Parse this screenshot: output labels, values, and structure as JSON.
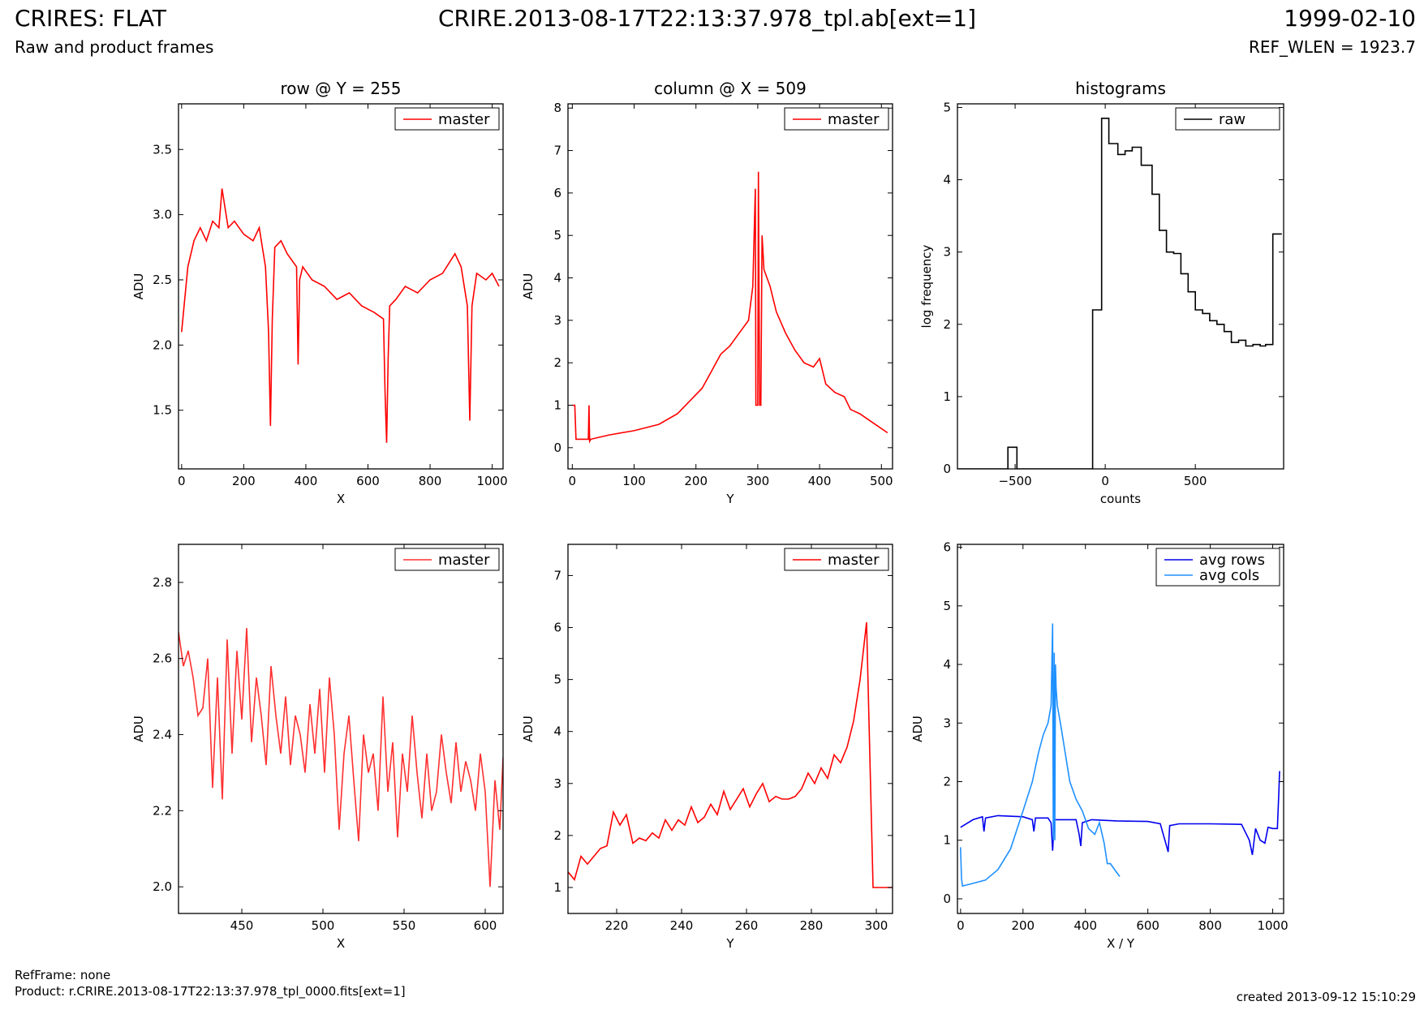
{
  "header": {
    "title_left": "CRIRES: FLAT",
    "title_center": "CRIRE.2013-08-17T22:13:37.978_tpl.ab[ext=1]",
    "title_right": "1999-02-10",
    "subtitle_left": "Raw and product frames",
    "subtitle_right": "REF_WLEN = 1923.7"
  },
  "footer": {
    "refframe": "RefFrame: none",
    "product": "Product: r.CRIRE.2013-08-17T22:13:37.978_tpl_0000.fits[ext=1]",
    "created": "created 2013-09-12 15:10:29"
  },
  "chart_data": [
    {
      "type": "line",
      "title": "row @ Y = 255",
      "xlabel": "X",
      "ylabel": "ADU",
      "xlim": [
        -10,
        1035
      ],
      "ylim": [
        1.05,
        3.85
      ],
      "xticks": [
        0,
        200,
        400,
        600,
        800,
        1000
      ],
      "yticks": [
        1.5,
        2.0,
        2.5,
        3.0,
        3.5
      ],
      "ytick_labels": [
        "1.5",
        "2.0",
        "2.5",
        "3.0",
        "3.5"
      ],
      "legend_position": "top-right",
      "series": [
        {
          "name": "master",
          "color": "#ff0000",
          "x": [
            0,
            20,
            40,
            60,
            80,
            100,
            120,
            130,
            150,
            170,
            200,
            230,
            250,
            270,
            280,
            286,
            292,
            300,
            320,
            340,
            370,
            375,
            380,
            390,
            420,
            460,
            500,
            540,
            580,
            620,
            650,
            655,
            660,
            665,
            670,
            690,
            720,
            760,
            800,
            840,
            880,
            900,
            920,
            928,
            935,
            950,
            980,
            1000,
            1022
          ],
          "y": [
            2.1,
            2.6,
            2.8,
            2.9,
            2.8,
            2.95,
            2.9,
            3.2,
            2.9,
            2.95,
            2.85,
            2.8,
            2.9,
            2.6,
            2.1,
            1.38,
            2.2,
            2.75,
            2.8,
            2.7,
            2.6,
            1.85,
            2.5,
            2.6,
            2.5,
            2.45,
            2.35,
            2.4,
            2.3,
            2.25,
            2.2,
            1.65,
            1.25,
            1.9,
            2.3,
            2.35,
            2.45,
            2.4,
            2.5,
            2.55,
            2.7,
            2.6,
            2.3,
            1.42,
            2.3,
            2.55,
            2.5,
            2.55,
            2.45
          ]
        }
      ]
    },
    {
      "type": "line",
      "title": "column @ X = 509",
      "xlabel": "Y",
      "ylabel": "ADU",
      "xlim": [
        -7,
        518
      ],
      "ylim": [
        -0.5,
        8.1
      ],
      "xticks": [
        0,
        100,
        200,
        300,
        400,
        500
      ],
      "yticks": [
        0,
        1,
        2,
        3,
        4,
        5,
        6,
        7,
        8
      ],
      "ytick_labels": [
        "0",
        "1",
        "2",
        "3",
        "4",
        "5",
        "6",
        "7",
        "8"
      ],
      "legend_position": "top-right",
      "series": [
        {
          "name": "master",
          "color": "#ff0000",
          "x": [
            0,
            4,
            6,
            26,
            27,
            28,
            30,
            60,
            100,
            140,
            170,
            190,
            210,
            225,
            240,
            255,
            265,
            275,
            285,
            292,
            296,
            297,
            300,
            301,
            303,
            305,
            307,
            310,
            320,
            330,
            345,
            360,
            375,
            390,
            400,
            410,
            425,
            440,
            450,
            465,
            480,
            495,
            510
          ],
          "y": [
            1.0,
            1.0,
            0.2,
            0.2,
            1.0,
            0.15,
            0.2,
            0.3,
            0.4,
            0.55,
            0.8,
            1.1,
            1.4,
            1.8,
            2.2,
            2.4,
            2.6,
            2.8,
            3.0,
            3.8,
            6.1,
            1.0,
            1.0,
            6.5,
            1.0,
            1.0,
            5.0,
            4.2,
            3.8,
            3.2,
            2.7,
            2.3,
            2.0,
            1.9,
            2.1,
            1.5,
            1.3,
            1.2,
            0.9,
            0.8,
            0.65,
            0.5,
            0.35
          ]
        }
      ]
    },
    {
      "type": "line",
      "title": "histograms",
      "xlabel": "counts",
      "ylabel": "log frequency",
      "xlim": [
        -820,
        990
      ],
      "ylim": [
        0,
        5.05
      ],
      "xticks": [
        -500,
        0,
        500
      ],
      "xtick_labels": [
        "−500",
        "0",
        "500"
      ],
      "yticks": [
        0,
        1,
        2,
        3,
        4,
        5
      ],
      "ytick_labels": [
        "0",
        "1",
        "2",
        "3",
        "4",
        "5"
      ],
      "legend_position": "top-right",
      "series": [
        {
          "name": "raw",
          "color": "#000000",
          "step": true,
          "x": [
            -820,
            -540,
            -540,
            -490,
            -490,
            -70,
            -70,
            -20,
            -20,
            20,
            20,
            70,
            70,
            110,
            110,
            150,
            150,
            200,
            200,
            260,
            260,
            300,
            300,
            340,
            340,
            380,
            380,
            420,
            420,
            460,
            460,
            500,
            500,
            540,
            540,
            580,
            580,
            620,
            620,
            660,
            660,
            700,
            700,
            740,
            740,
            780,
            780,
            820,
            820,
            860,
            860,
            890,
            890,
            930,
            930,
            980
          ],
          "y": [
            0,
            0,
            0.3,
            0.3,
            0,
            0,
            2.2,
            2.2,
            4.85,
            4.85,
            4.5,
            4.5,
            4.35,
            4.35,
            4.4,
            4.4,
            4.45,
            4.45,
            4.2,
            4.2,
            3.8,
            3.8,
            3.3,
            3.3,
            3.0,
            3.0,
            2.98,
            2.98,
            2.7,
            2.7,
            2.45,
            2.45,
            2.2,
            2.2,
            2.15,
            2.15,
            2.05,
            2.05,
            2.0,
            2.0,
            1.9,
            1.9,
            1.75,
            1.75,
            1.78,
            1.78,
            1.7,
            1.7,
            1.72,
            1.72,
            1.7,
            1.7,
            1.72,
            1.72,
            3.25,
            3.25
          ]
        }
      ]
    },
    {
      "type": "line",
      "xlabel": "X",
      "ylabel": "ADU",
      "xlim": [
        411,
        611
      ],
      "ylim": [
        1.93,
        2.9
      ],
      "xticks": [
        450,
        500,
        550,
        600
      ],
      "yticks": [
        2.0,
        2.2,
        2.4,
        2.6,
        2.8
      ],
      "ytick_labels": [
        "2.0",
        "2.2",
        "2.4",
        "2.6",
        "2.8"
      ],
      "legend_position": "top-right",
      "series": [
        {
          "name": "master",
          "color": "#ff3030",
          "step": true,
          "x": [
            411,
            414,
            417,
            420,
            423,
            426,
            429,
            432,
            435,
            438,
            441,
            444,
            447,
            450,
            453,
            456,
            459,
            462,
            465,
            468,
            471,
            474,
            477,
            480,
            483,
            486,
            489,
            492,
            495,
            498,
            501,
            504,
            507,
            510,
            513,
            516,
            519,
            522,
            525,
            528,
            531,
            534,
            537,
            540,
            543,
            546,
            549,
            552,
            555,
            558,
            561,
            564,
            567,
            570,
            573,
            576,
            579,
            582,
            585,
            588,
            591,
            594,
            597,
            600,
            603,
            606,
            609,
            611
          ],
          "y": [
            2.67,
            2.58,
            2.62,
            2.55,
            2.45,
            2.47,
            2.6,
            2.26,
            2.55,
            2.23,
            2.65,
            2.35,
            2.62,
            2.44,
            2.68,
            2.38,
            2.55,
            2.45,
            2.32,
            2.58,
            2.45,
            2.35,
            2.5,
            2.32,
            2.45,
            2.4,
            2.3,
            2.48,
            2.35,
            2.52,
            2.3,
            2.55,
            2.4,
            2.15,
            2.35,
            2.45,
            2.28,
            2.12,
            2.4,
            2.3,
            2.35,
            2.2,
            2.5,
            2.25,
            2.38,
            2.13,
            2.35,
            2.25,
            2.45,
            2.3,
            2.18,
            2.35,
            2.2,
            2.25,
            2.4,
            2.3,
            2.22,
            2.38,
            2.25,
            2.33,
            2.28,
            2.2,
            2.35,
            2.25,
            2.0,
            2.28,
            2.15,
            2.34
          ]
        }
      ]
    },
    {
      "type": "line",
      "xlabel": "Y",
      "ylabel": "ADU",
      "xlim": [
        205,
        305
      ],
      "ylim": [
        0.5,
        7.6
      ],
      "xticks": [
        220,
        240,
        260,
        280,
        300
      ],
      "yticks": [
        1,
        2,
        3,
        4,
        5,
        6,
        7
      ],
      "ytick_labels": [
        "1",
        "2",
        "3",
        "4",
        "5",
        "6",
        "7"
      ],
      "legend_position": "top-right",
      "series": [
        {
          "name": "master",
          "color": "#ff0000",
          "step": true,
          "x": [
            205,
            207,
            209,
            211,
            213,
            215,
            217,
            219,
            221,
            223,
            225,
            227,
            229,
            231,
            233,
            235,
            237,
            239,
            241,
            243,
            245,
            247,
            249,
            251,
            253,
            255,
            257,
            259,
            261,
            263,
            265,
            267,
            269,
            271,
            273,
            275,
            277,
            279,
            281,
            283,
            285,
            287,
            289,
            291,
            293,
            295,
            297,
            299,
            301,
            303,
            305
          ],
          "y": [
            1.3,
            1.15,
            1.6,
            1.45,
            1.6,
            1.75,
            1.8,
            2.45,
            2.2,
            2.4,
            1.85,
            1.95,
            1.9,
            2.05,
            1.95,
            2.3,
            2.1,
            2.3,
            2.2,
            2.55,
            2.25,
            2.35,
            2.6,
            2.4,
            2.85,
            2.5,
            2.7,
            2.9,
            2.55,
            2.8,
            3.0,
            2.65,
            2.75,
            2.7,
            2.7,
            2.75,
            2.9,
            3.2,
            3.0,
            3.3,
            3.1,
            3.55,
            3.4,
            3.7,
            4.2,
            5.0,
            6.1,
            1.0,
            1.0,
            1.0,
            1.0
          ]
        }
      ]
    },
    {
      "type": "line",
      "xlabel": "X / Y",
      "ylabel": "ADU",
      "xlim": [
        -10,
        1035
      ],
      "ylim": [
        -0.25,
        6.05
      ],
      "xticks": [
        0,
        200,
        400,
        600,
        800,
        1000
      ],
      "yticks": [
        0,
        1,
        2,
        3,
        4,
        5,
        6
      ],
      "ytick_labels": [
        "0",
        "1",
        "2",
        "3",
        "4",
        "5",
        "6"
      ],
      "legend_position": "top-right",
      "series": [
        {
          "name": "avg rows",
          "color": "#0000ee",
          "x": [
            0,
            40,
            70,
            75,
            80,
            120,
            200,
            230,
            235,
            240,
            280,
            290,
            295,
            300,
            340,
            370,
            380,
            385,
            390,
            420,
            500,
            600,
            640,
            660,
            665,
            670,
            700,
            800,
            900,
            925,
            935,
            945,
            960,
            975,
            985,
            1000,
            1015,
            1020,
            1022
          ],
          "y": [
            1.22,
            1.35,
            1.4,
            1.15,
            1.38,
            1.42,
            1.4,
            1.35,
            1.15,
            1.38,
            1.38,
            1.3,
            0.82,
            1.35,
            1.35,
            1.35,
            1.1,
            0.9,
            1.3,
            1.35,
            1.33,
            1.32,
            1.28,
            0.9,
            0.8,
            1.25,
            1.28,
            1.28,
            1.27,
            1.0,
            0.75,
            1.2,
            1.0,
            0.95,
            1.22,
            1.2,
            1.2,
            1.85,
            2.18
          ]
        },
        {
          "name": "avg cols",
          "color": "#1e90ff",
          "x": [
            0,
            3,
            6,
            30,
            80,
            120,
            160,
            200,
            230,
            250,
            265,
            280,
            290,
            295,
            297,
            300,
            302,
            304,
            306,
            310,
            320,
            335,
            350,
            370,
            390,
            410,
            430,
            445,
            460,
            470,
            480,
            500,
            510
          ],
          "y": [
            0.88,
            0.35,
            0.22,
            0.25,
            0.32,
            0.5,
            0.85,
            1.5,
            2.0,
            2.5,
            2.8,
            3.0,
            3.3,
            4.7,
            1.0,
            4.2,
            1.0,
            4.0,
            3.6,
            3.3,
            3.0,
            2.5,
            2.0,
            1.7,
            1.5,
            1.2,
            1.1,
            1.3,
            0.95,
            0.6,
            0.6,
            0.45,
            0.38
          ]
        }
      ]
    }
  ]
}
